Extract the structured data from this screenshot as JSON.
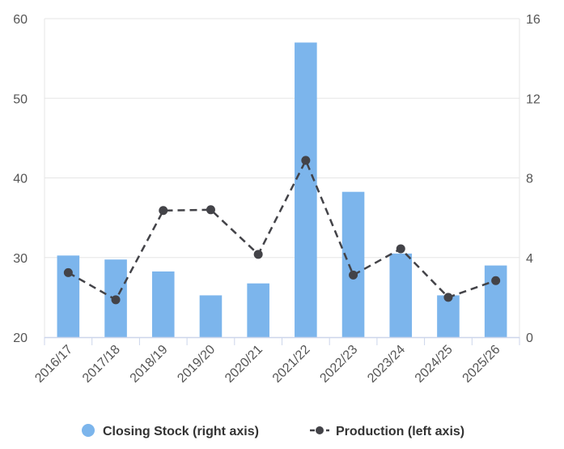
{
  "chart_data": {
    "type": "bar",
    "categories": [
      "2016/17",
      "2017/18",
      "2018/19",
      "2019/20",
      "2020/21",
      "2021/22",
      "2022/23",
      "2023/24",
      "2024/25",
      "2025/26"
    ],
    "series": [
      {
        "name": "Closing Stock (right axis)",
        "type": "bar",
        "axis": "right",
        "color": "#7cb5ec",
        "values": [
          4.1,
          3.9,
          3.3,
          2.1,
          2.7,
          14.8,
          7.3,
          4.2,
          2.1,
          3.6
        ]
      },
      {
        "name": "Production (left axis)",
        "type": "line",
        "axis": "left",
        "color": "#434348",
        "dash": "dashed",
        "values": [
          28.1,
          24.7,
          35.9,
          36.0,
          30.4,
          42.2,
          27.8,
          31.1,
          25.0,
          27.1
        ]
      }
    ],
    "left_axis": {
      "min": 20,
      "max": 60,
      "ticks": [
        20,
        30,
        40,
        50,
        60
      ]
    },
    "right_axis": {
      "min": 0,
      "max": 16,
      "ticks": [
        0,
        4,
        8,
        12,
        16
      ]
    },
    "grid": true,
    "legend_position": "bottom-center",
    "title": "",
    "xlabel": "",
    "ylabel": ""
  }
}
